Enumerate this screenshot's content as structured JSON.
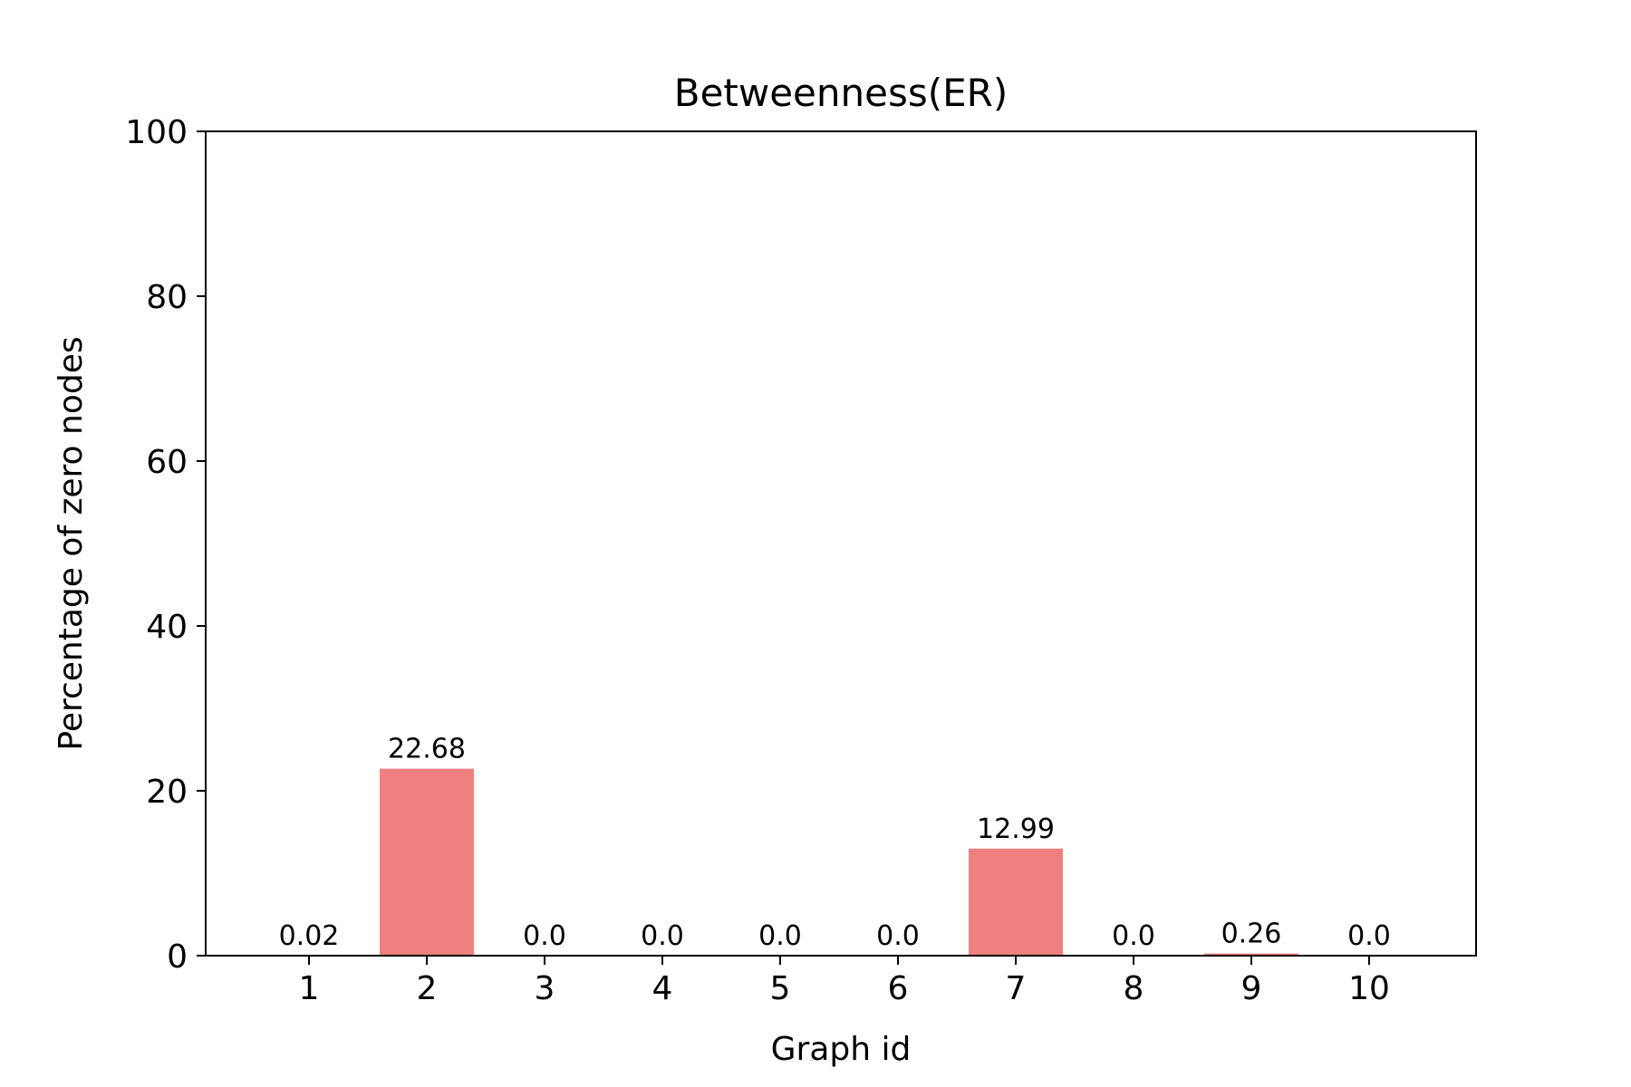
{
  "chart_data": {
    "type": "bar",
    "title": "Betweenness(ER)",
    "xlabel": "Graph id",
    "ylabel": "Percentage of zero nodes",
    "categories": [
      "1",
      "2",
      "3",
      "4",
      "5",
      "6",
      "7",
      "8",
      "9",
      "10"
    ],
    "values": [
      0.02,
      22.68,
      0.0,
      0.0,
      0.0,
      0.0,
      12.99,
      0.0,
      0.26,
      0.0
    ],
    "data_labels": [
      "0.02",
      "22.68",
      "0.0",
      "0.0",
      "0.0",
      "0.0",
      "12.99",
      "0.0",
      "0.26",
      "0.0"
    ],
    "ylim": [
      0,
      100
    ],
    "yticks": [
      0,
      20,
      40,
      60,
      80,
      100
    ],
    "bar_color": "#f08080",
    "grid": false
  }
}
